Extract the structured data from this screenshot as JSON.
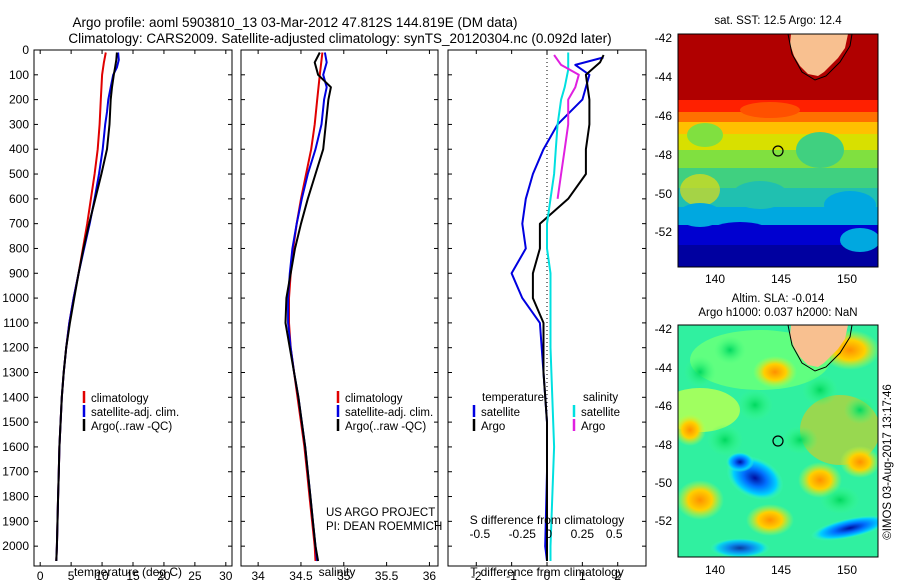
{
  "header": {
    "line1": "Argo profile: aoml 5903810_13 03-Mar-2012 47.812S 144.819E (DM data)",
    "line2": "Climatology: CARS2009. Satellite-adjusted climatology: synTS_20120304.nc (0.092d later)"
  },
  "colors": {
    "climatology": "#e00000",
    "satellite": "#0000e0",
    "argo": "#000000",
    "argo_salinity": "#e020e0",
    "satellite_salinity": "#00e0e0"
  },
  "chart_data": [
    {
      "type": "line",
      "panel": "temperature",
      "xlabel": "temperature (deg C)",
      "ylabel": "",
      "xlim": [
        -1,
        31
      ],
      "ylim": [
        2080,
        0
      ],
      "xticks": [
        0,
        5,
        10,
        15,
        20,
        25,
        30
      ],
      "yticks": [
        0,
        100,
        200,
        300,
        400,
        500,
        600,
        700,
        800,
        900,
        1000,
        1100,
        1200,
        1300,
        1400,
        1500,
        1600,
        1700,
        1800,
        1900,
        2000
      ],
      "legend": [
        "climatology",
        "satellite-adj. clim.",
        "Argo(..raw -QC)"
      ],
      "series": [
        {
          "name": "climatology",
          "color": "#e00000",
          "points": [
            [
              10.6,
              10
            ],
            [
              10.3,
              50
            ],
            [
              10.0,
              100
            ],
            [
              9.8,
              200
            ],
            [
              9.6,
              300
            ],
            [
              9.3,
              400
            ],
            [
              8.8,
              500
            ],
            [
              8.2,
              600
            ],
            [
              7.6,
              700
            ],
            [
              6.9,
              800
            ],
            [
              6.2,
              900
            ],
            [
              5.4,
              1000
            ],
            [
              4.7,
              1100
            ],
            [
              4.2,
              1200
            ],
            [
              3.8,
              1300
            ],
            [
              3.5,
              1400
            ],
            [
              3.3,
              1500
            ],
            [
              3.1,
              1600
            ],
            [
              3.0,
              1700
            ],
            [
              2.9,
              1800
            ],
            [
              2.8,
              1900
            ],
            [
              2.7,
              2000
            ],
            [
              2.6,
              2060
            ]
          ]
        },
        {
          "name": "satellite-adj. clim.",
          "color": "#0000e0",
          "points": [
            [
              12.6,
              10
            ],
            [
              12.7,
              40
            ],
            [
              12.4,
              70
            ],
            [
              11.8,
              100
            ],
            [
              11.4,
              150
            ],
            [
              11.0,
              200
            ],
            [
              10.8,
              250
            ],
            [
              10.5,
              300
            ],
            [
              10.1,
              400
            ],
            [
              9.5,
              500
            ],
            [
              8.8,
              600
            ],
            [
              8.0,
              700
            ],
            [
              7.1,
              800
            ],
            [
              6.2,
              900
            ],
            [
              5.4,
              1000
            ],
            [
              4.7,
              1100
            ],
            [
              4.2,
              1200
            ],
            [
              3.8,
              1300
            ],
            [
              3.5,
              1400
            ],
            [
              3.3,
              1500
            ],
            [
              3.1,
              1600
            ],
            [
              3.0,
              1700
            ],
            [
              2.9,
              1800
            ],
            [
              2.8,
              1900
            ],
            [
              2.7,
              2000
            ],
            [
              2.6,
              2060
            ]
          ]
        },
        {
          "name": "Argo(..raw -QC)",
          "color": "#000000",
          "points": [
            [
              12.4,
              10
            ],
            [
              12.3,
              40
            ],
            [
              12.1,
              70
            ],
            [
              11.9,
              100
            ],
            [
              11.6,
              150
            ],
            [
              11.4,
              200
            ],
            [
              11.2,
              300
            ],
            [
              10.8,
              400
            ],
            [
              9.9,
              500
            ],
            [
              8.9,
              600
            ],
            [
              7.9,
              700
            ],
            [
              7.0,
              800
            ],
            [
              6.2,
              900
            ],
            [
              5.5,
              1000
            ],
            [
              4.8,
              1100
            ],
            [
              4.2,
              1200
            ],
            [
              3.8,
              1300
            ],
            [
              3.5,
              1400
            ],
            [
              3.3,
              1500
            ],
            [
              3.1,
              1600
            ],
            [
              3.0,
              1700
            ],
            [
              2.9,
              1800
            ],
            [
              2.8,
              1900
            ],
            [
              2.7,
              2000
            ],
            [
              2.6,
              2060
            ]
          ]
        }
      ]
    },
    {
      "type": "line",
      "panel": "salinity",
      "xlabel": "salinity",
      "xlim": [
        33.8,
        36.1
      ],
      "ylim": [
        2080,
        0
      ],
      "xticks": [
        34,
        34.5,
        35,
        35.5,
        36
      ],
      "legend": [
        "climatology",
        "satellite-adj. clim.",
        "Argo(..raw -QC)"
      ],
      "annotation": [
        "US ARGO PROJECT",
        "PI: DEAN ROEMMICH"
      ],
      "series": [
        {
          "name": "climatology",
          "color": "#e00000",
          "points": [
            [
              34.75,
              10
            ],
            [
              34.72,
              100
            ],
            [
              34.69,
              200
            ],
            [
              34.66,
              300
            ],
            [
              34.62,
              400
            ],
            [
              34.56,
              500
            ],
            [
              34.5,
              600
            ],
            [
              34.45,
              700
            ],
            [
              34.41,
              800
            ],
            [
              34.38,
              900
            ],
            [
              34.36,
              1000
            ],
            [
              34.36,
              1100
            ],
            [
              34.38,
              1200
            ],
            [
              34.42,
              1300
            ],
            [
              34.46,
              1400
            ],
            [
              34.5,
              1500
            ],
            [
              34.54,
              1600
            ],
            [
              34.57,
              1700
            ],
            [
              34.6,
              1800
            ],
            [
              34.63,
              1900
            ],
            [
              34.66,
              2000
            ],
            [
              34.67,
              2060
            ]
          ]
        },
        {
          "name": "satellite-adj. clim.",
          "color": "#0000e0",
          "points": [
            [
              34.78,
              10
            ],
            [
              34.8,
              50
            ],
            [
              34.76,
              100
            ],
            [
              34.8,
              150
            ],
            [
              34.77,
              200
            ],
            [
              34.74,
              300
            ],
            [
              34.67,
              400
            ],
            [
              34.58,
              500
            ],
            [
              34.51,
              600
            ],
            [
              34.45,
              700
            ],
            [
              34.4,
              800
            ],
            [
              34.37,
              900
            ],
            [
              34.35,
              1000
            ],
            [
              34.35,
              1100
            ],
            [
              34.38,
              1200
            ],
            [
              34.42,
              1300
            ],
            [
              34.47,
              1400
            ],
            [
              34.51,
              1500
            ],
            [
              34.55,
              1600
            ],
            [
              34.58,
              1700
            ],
            [
              34.61,
              1800
            ],
            [
              34.64,
              1900
            ],
            [
              34.67,
              2000
            ],
            [
              34.69,
              2060
            ]
          ]
        },
        {
          "name": "Argo(..raw -QC)",
          "color": "#000000",
          "points": [
            [
              34.72,
              10
            ],
            [
              34.66,
              50
            ],
            [
              34.7,
              100
            ],
            [
              34.85,
              150
            ],
            [
              34.82,
              200
            ],
            [
              34.79,
              300
            ],
            [
              34.76,
              400
            ],
            [
              34.67,
              500
            ],
            [
              34.58,
              600
            ],
            [
              34.5,
              700
            ],
            [
              34.43,
              800
            ],
            [
              34.38,
              900
            ],
            [
              34.33,
              1000
            ],
            [
              34.32,
              1100
            ],
            [
              34.37,
              1200
            ],
            [
              34.42,
              1300
            ],
            [
              34.47,
              1400
            ],
            [
              34.51,
              1500
            ],
            [
              34.55,
              1600
            ],
            [
              34.58,
              1700
            ],
            [
              34.61,
              1800
            ],
            [
              34.64,
              1900
            ],
            [
              34.67,
              2000
            ],
            [
              34.7,
              2060
            ]
          ]
        }
      ]
    },
    {
      "type": "line",
      "panel": "difference",
      "xlabel": "T difference from climatology",
      "xlabel_top": "S difference from climatology",
      "xlim": [
        -2.8,
        2.8
      ],
      "ylim": [
        2080,
        0
      ],
      "xticks": [
        -2,
        -1,
        0,
        1,
        2
      ],
      "xticks_top": [
        "-0.5",
        "-0.25",
        "0",
        "0.25",
        "0.5"
      ],
      "legend": {
        "temperature": [
          "satellite",
          "Argo"
        ],
        "salinity": [
          "satellite",
          "Argo"
        ],
        "temperature_title": "temperature",
        "salinity_title": "salinity"
      },
      "series": [
        {
          "name": "temperature satellite",
          "color": "#0000e0",
          "points": [
            [
              1.6,
              30
            ],
            [
              0.8,
              60
            ],
            [
              1.2,
              100
            ],
            [
              1.0,
              200
            ],
            [
              0.3,
              300
            ],
            [
              -0.1,
              400
            ],
            [
              -0.4,
              500
            ],
            [
              -0.6,
              600
            ],
            [
              -0.7,
              700
            ],
            [
              -0.6,
              800
            ],
            [
              -1.0,
              900
            ],
            [
              -0.7,
              1000
            ],
            [
              -0.2,
              1100
            ],
            [
              -0.1,
              1300
            ],
            [
              0.0,
              1500
            ],
            [
              0.0,
              1700
            ],
            [
              -0.05,
              2000
            ],
            [
              0.0,
              2060
            ]
          ]
        },
        {
          "name": "temperature Argo",
          "color": "#000000",
          "points": [
            [
              1.6,
              20
            ],
            [
              1.5,
              50
            ],
            [
              1.1,
              100
            ],
            [
              1.2,
              200
            ],
            [
              1.2,
              300
            ],
            [
              1.1,
              400
            ],
            [
              1.1,
              500
            ],
            [
              0.6,
              600
            ],
            [
              -0.2,
              700
            ],
            [
              -0.2,
              800
            ],
            [
              -0.4,
              900
            ],
            [
              -0.4,
              1000
            ],
            [
              -0.1,
              1100
            ],
            [
              -0.1,
              1300
            ],
            [
              0.0,
              1500
            ],
            [
              0.0,
              1700
            ],
            [
              0.0,
              2000
            ],
            [
              0.0,
              2060
            ]
          ]
        },
        {
          "name": "salinity satellite",
          "color": "#00e0e0",
          "points": [
            [
              0.6,
              10
            ],
            [
              0.6,
              80
            ],
            [
              0.5,
              150
            ],
            [
              0.4,
              200
            ],
            [
              0.3,
              300
            ],
            [
              0.25,
              400
            ],
            [
              0.2,
              500
            ],
            [
              0.1,
              600
            ],
            [
              0.0,
              700
            ],
            [
              0.0,
              800
            ],
            [
              0.1,
              900
            ],
            [
              0.1,
              1000
            ],
            [
              0.1,
              1200
            ],
            [
              0.15,
              1400
            ],
            [
              0.2,
              1600
            ],
            [
              0.15,
              1800
            ],
            [
              0.1,
              2000
            ],
            [
              0.1,
              2060
            ]
          ]
        },
        {
          "name": "salinity Argo",
          "color": "#e020e0",
          "points": [
            [
              0.2,
              20
            ],
            [
              0.4,
              60
            ],
            [
              0.9,
              100
            ],
            [
              0.8,
              150
            ],
            [
              0.6,
              200
            ],
            [
              0.6,
              300
            ],
            [
              0.5,
              400
            ],
            [
              0.4,
              500
            ],
            [
              0.3,
              600
            ]
          ]
        }
      ]
    }
  ],
  "maps": {
    "sst": {
      "title": "sat. SST: 12.5  Argo: 12.4",
      "yticks": [
        "-42",
        "-44",
        "-46",
        "-48",
        "-50",
        "-52"
      ],
      "xticks": [
        "140",
        "145",
        "150"
      ]
    },
    "sla": {
      "title1": "Altim. SLA: -0.014",
      "title2": "Argo h1000: 0.037 h2000: NaN",
      "yticks": [
        "-42",
        "-44",
        "-46",
        "-48",
        "-50",
        "-52"
      ],
      "xticks": [
        "140",
        "145",
        "150"
      ]
    }
  },
  "credit": "©IMOS 03-Aug-2017 13:17:46"
}
